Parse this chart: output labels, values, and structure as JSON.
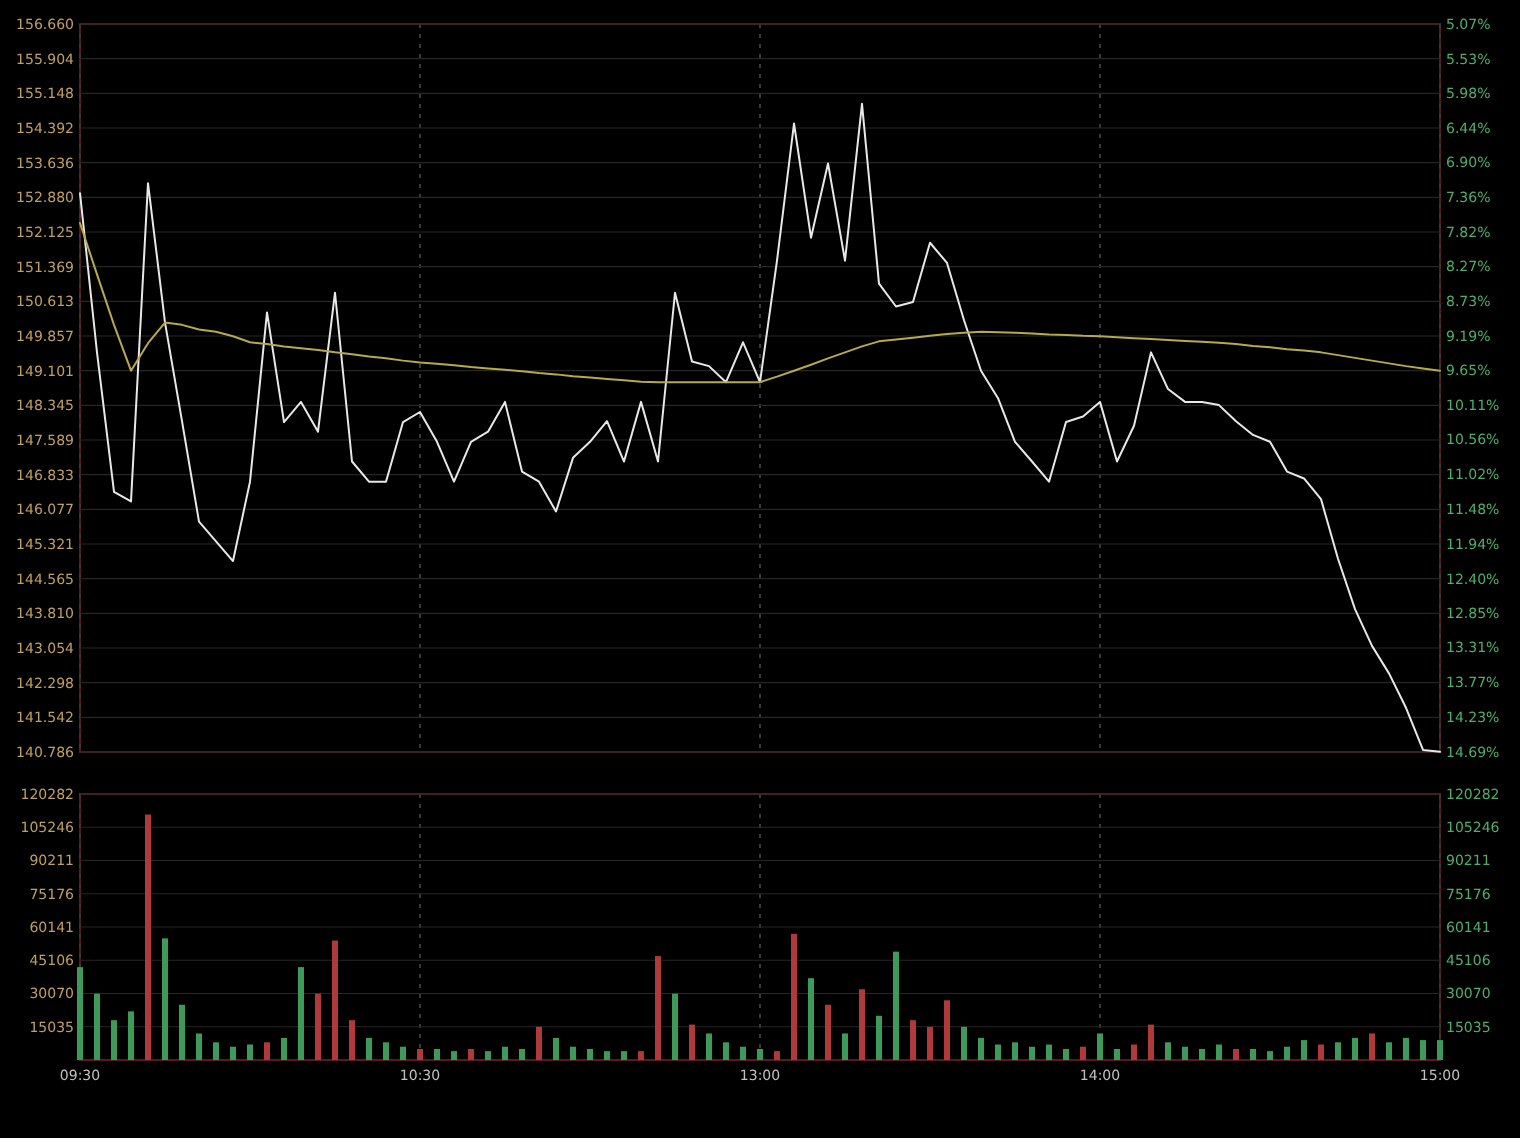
{
  "chart_data": [
    {
      "type": "line",
      "categories": [
        null,
        null,
        null,
        null,
        null,
        null,
        null,
        null,
        null,
        null,
        null,
        null,
        null,
        null,
        null,
        null,
        null,
        null,
        null,
        null,
        null,
        null,
        null,
        null,
        null,
        null,
        null,
        null,
        null,
        null,
        null,
        null,
        null,
        null,
        null,
        null,
        null,
        null,
        null,
        null,
        null,
        null,
        null,
        null,
        null,
        null,
        null,
        null,
        null,
        null,
        null,
        null,
        null,
        null,
        null,
        null,
        null,
        null,
        null,
        null,
        null,
        null,
        null,
        null,
        null,
        null,
        null,
        null,
        null,
        null,
        null,
        null,
        null,
        null,
        null,
        null,
        null,
        null,
        null,
        null,
        null
      ],
      "tick_labels": "y",
      "grid": true,
      "ylim": [
        140.786,
        156.66
      ],
      "yticks": [
        {
          "value": 156.66,
          "label": "156.660"
        },
        155.904,
        155.148,
        154.392,
        153.636,
        {
          "value": 152.88,
          "label": "152.880"
        },
        152.125,
        151.369,
        150.613,
        149.857,
        149.101,
        148.345,
        147.589,
        146.833,
        146.077,
        145.321,
        144.565,
        {
          "value": 143.81,
          "label": "143.810"
        },
        143.054,
        142.298,
        141.542,
        140.786
      ],
      "y2lim": [
        14.69,
        5.07
      ],
      "y2ticks": [
        {
          "value": 5.07,
          "label": "5.07%"
        },
        {
          "value": 5.53,
          "label": "5.53%"
        },
        {
          "value": 5.98,
          "label": "5.98%"
        },
        {
          "value": 6.44,
          "label": "6.44%"
        },
        {
          "value": 6.9,
          "label": "6.90%"
        },
        {
          "value": 7.36,
          "label": "7.36%"
        },
        {
          "value": 7.82,
          "label": "7.82%"
        },
        {
          "value": 8.27,
          "label": "8.27%"
        },
        {
          "value": 8.73,
          "label": "8.73%"
        },
        {
          "value": 9.19,
          "label": "9.19%"
        },
        {
          "value": 9.65,
          "label": "9.65%"
        },
        {
          "value": 10.11,
          "label": "10.11%"
        },
        {
          "value": 10.56,
          "label": "10.56%"
        },
        {
          "value": 11.02,
          "label": "11.02%"
        },
        {
          "value": 11.48,
          "label": "11.48%"
        },
        {
          "value": 11.94,
          "label": "11.94%"
        },
        {
          "value": 12.4,
          "label": "12.40%"
        },
        {
          "value": 12.85,
          "label": "12.85%"
        },
        {
          "value": 13.31,
          "label": "13.31%"
        },
        {
          "value": 13.77,
          "label": "13.77%"
        },
        {
          "value": 14.23,
          "label": "14.23%"
        },
        {
          "value": 14.69,
          "label": "14.69%"
        }
      ],
      "series": [
        {
          "color": "#e8e8e8",
          "values": [
            152.97,
            149.5,
            146.46,
            146.25,
            153.19,
            150.15,
            148.0,
            145.81,
            145.38,
            144.95,
            146.68,
            150.37,
            147.98,
            148.42,
            147.77,
            150.8,
            147.12,
            146.68,
            146.68,
            147.98,
            148.2,
            147.55,
            146.68,
            147.55,
            147.77,
            148.42,
            146.9,
            146.68,
            146.03,
            147.2,
            147.55,
            148.0,
            147.12,
            148.42,
            147.12,
            150.8,
            149.3,
            149.2,
            148.85,
            149.72,
            148.85,
            151.5,
            154.49,
            152.0,
            153.62,
            151.5,
            154.92,
            151.0,
            150.5,
            150.6,
            151.89,
            151.45,
            150.2,
            149.1,
            148.5,
            147.55,
            147.12,
            146.68,
            147.98,
            148.1,
            148.42,
            147.12,
            147.9,
            149.5,
            148.7,
            148.42,
            148.42,
            148.35,
            148.0,
            147.7,
            147.55,
            146.9,
            146.75,
            146.3,
            145.0,
            143.9,
            143.1,
            142.5,
            141.75,
            140.83,
            140.79
          ]
        },
        {
          "color": "#b8a94a",
          "values": [
            152.32,
            151.2,
            150.1,
            149.1,
            149.7,
            150.15,
            150.1,
            150.0,
            149.95,
            149.85,
            149.72,
            149.68,
            149.63,
            149.59,
            149.55,
            149.5,
            149.46,
            149.41,
            149.37,
            149.32,
            149.28,
            149.25,
            149.22,
            149.18,
            149.15,
            149.12,
            149.09,
            149.05,
            149.02,
            148.98,
            148.95,
            148.92,
            148.89,
            148.86,
            148.85,
            148.85,
            148.85,
            148.85,
            148.85,
            148.85,
            148.85,
            148.97,
            149.1,
            149.23,
            149.37,
            149.5,
            149.63,
            149.74,
            149.78,
            149.82,
            149.86,
            149.9,
            149.93,
            149.95,
            149.94,
            149.93,
            149.91,
            149.89,
            149.88,
            149.86,
            149.85,
            149.83,
            149.81,
            149.79,
            149.77,
            149.75,
            149.73,
            149.71,
            149.68,
            149.64,
            149.61,
            149.57,
            149.54,
            149.5,
            149.44,
            149.38,
            149.32,
            149.26,
            149.2,
            149.15,
            149.1
          ]
        }
      ]
    },
    {
      "type": "bar",
      "categories": [
        "09:30",
        null,
        null,
        null,
        null,
        null,
        null,
        null,
        null,
        null,
        null,
        null,
        null,
        null,
        null,
        null,
        null,
        null,
        null,
        null,
        "10:30",
        null,
        null,
        null,
        null,
        null,
        null,
        null,
        null,
        null,
        null,
        null,
        null,
        null,
        null,
        null,
        null,
        null,
        null,
        null,
        "13:00",
        null,
        null,
        null,
        null,
        null,
        null,
        null,
        null,
        null,
        null,
        null,
        null,
        null,
        null,
        null,
        null,
        null,
        null,
        null,
        "14:00",
        null,
        null,
        null,
        null,
        null,
        null,
        null,
        null,
        null,
        null,
        null,
        null,
        null,
        null,
        null,
        null,
        null,
        null,
        null,
        "15:00"
      ],
      "grid": true,
      "ylim": [
        0,
        120282
      ],
      "yticks": [
        15035,
        30070,
        45106,
        60141,
        75176,
        90211,
        105246,
        120282
      ],
      "y2lim": [
        0,
        120282
      ],
      "y2ticks": [
        15035,
        30070,
        45106,
        60141,
        75176,
        90211,
        105246,
        120282
      ],
      "values": [
        42000,
        30000,
        18000,
        22000,
        111000,
        55000,
        25000,
        12000,
        8000,
        6000,
        7000,
        8000,
        10000,
        42000,
        30000,
        54000,
        18000,
        10000,
        8000,
        6000,
        5000,
        5000,
        4000,
        5000,
        4000,
        6000,
        5000,
        15000,
        10000,
        6000,
        5000,
        4000,
        4000,
        4000,
        47000,
        30000,
        16000,
        12000,
        8000,
        6000,
        5000,
        4000,
        57000,
        37000,
        25000,
        12000,
        32000,
        20000,
        49000,
        18000,
        15000,
        27000,
        15000,
        10000,
        7000,
        8000,
        6000,
        7000,
        5000,
        6000,
        12000,
        5000,
        7000,
        16000,
        8000,
        6000,
        5000,
        7000,
        5000,
        5000,
        4000,
        6000,
        9000,
        7000,
        8000,
        10000,
        12000,
        8000,
        10000,
        9000,
        9000
      ],
      "colors": [
        "#3e9a5a",
        "#3e9a5a",
        "#3e9a5a",
        "#3e9a5a",
        "#b03a3a",
        "#3e9a5a",
        "#3e9a5a",
        "#3e9a5a",
        "#3e9a5a",
        "#3e9a5a",
        "#3e9a5a",
        "#b03a3a",
        "#3e9a5a",
        "#3e9a5a",
        "#b03a3a",
        "#b03a3a",
        "#b03a3a",
        "#3e9a5a",
        "#3e9a5a",
        "#3e9a5a",
        "#b03a3a",
        "#3e9a5a",
        "#3e9a5a",
        "#b03a3a",
        "#3e9a5a",
        "#3e9a5a",
        "#3e9a5a",
        "#b03a3a",
        "#3e9a5a",
        "#3e9a5a",
        "#3e9a5a",
        "#3e9a5a",
        "#3e9a5a",
        "#b03a3a",
        "#b03a3a",
        "#3e9a5a",
        "#b03a3a",
        "#3e9a5a",
        "#3e9a5a",
        "#3e9a5a",
        "#3e9a5a",
        "#b03a3a",
        "#b03a3a",
        "#3e9a5a",
        "#b03a3a",
        "#3e9a5a",
        "#b03a3a",
        "#3e9a5a",
        "#3e9a5a",
        "#b03a3a",
        "#b03a3a",
        "#b03a3a",
        "#3e9a5a",
        "#3e9a5a",
        "#3e9a5a",
        "#3e9a5a",
        "#3e9a5a",
        "#3e9a5a",
        "#3e9a5a",
        "#b03a3a",
        "#3e9a5a",
        "#3e9a5a",
        "#b03a3a",
        "#b03a3a",
        "#3e9a5a",
        "#3e9a5a",
        "#3e9a5a",
        "#3e9a5a",
        "#b03a3a",
        "#3e9a5a",
        "#3e9a5a",
        "#3e9a5a",
        "#3e9a5a",
        "#b03a3a",
        "#3e9a5a",
        "#3e9a5a",
        "#b03a3a",
        "#3e9a5a",
        "#3e9a5a",
        "#3e9a5a",
        "#3e9a5a"
      ]
    }
  ]
}
